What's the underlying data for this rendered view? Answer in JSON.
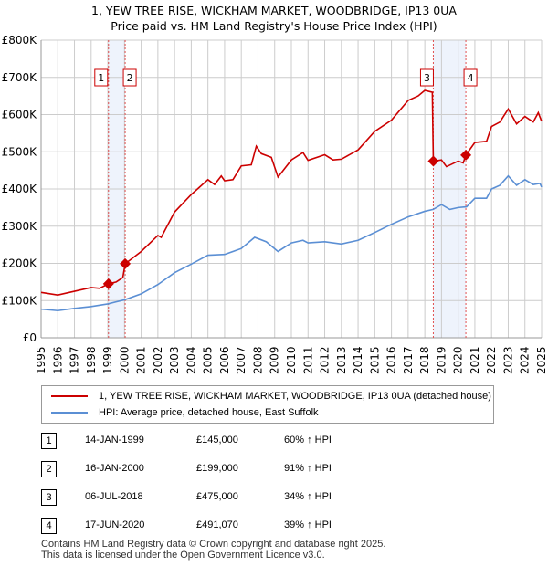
{
  "chart_data": {
    "type": "line",
    "title": "1, YEW TREE RISE, WICKHAM MARKET, WOODBRIDGE, IP13 0UA",
    "subtitle": "Price paid vs. HM Land Registry's House Price Index (HPI)",
    "xlim": [
      1995,
      2025
    ],
    "ylim": [
      0,
      800000
    ],
    "y_ticks": [
      {
        "v": 0,
        "label": "£0"
      },
      {
        "v": 100000,
        "label": "£100K"
      },
      {
        "v": 200000,
        "label": "£200K"
      },
      {
        "v": 300000,
        "label": "£300K"
      },
      {
        "v": 400000,
        "label": "£400K"
      },
      {
        "v": 500000,
        "label": "£500K"
      },
      {
        "v": 600000,
        "label": "£600K"
      },
      {
        "v": 700000,
        "label": "£700K"
      },
      {
        "v": 800000,
        "label": "£800K"
      }
    ],
    "x_ticks": [
      "1995",
      "1996",
      "1997",
      "1998",
      "1999",
      "2000",
      "2001",
      "2002",
      "2003",
      "2004",
      "2005",
      "2006",
      "2007",
      "2008",
      "2009",
      "2010",
      "2011",
      "2012",
      "2013",
      "2014",
      "2015",
      "2016",
      "2017",
      "2018",
      "2019",
      "2020",
      "2021",
      "2022",
      "2023",
      "2024",
      "2025"
    ],
    "grid": true,
    "series": [
      {
        "name": "1, YEW TREE RISE, WICKHAM MARKET, WOODBRIDGE, IP13 0UA (detached house)",
        "color": "#cc0000",
        "x": [
          1995,
          1996,
          1997,
          1998,
          1998.5,
          1999.04,
          1999.5,
          1999.9,
          2000.04,
          2001,
          2002,
          2002.2,
          2003,
          2004,
          2005,
          2005.4,
          2005.8,
          2006,
          2006.5,
          2007,
          2007.6,
          2007.9,
          2008.2,
          2008.8,
          2009.2,
          2010,
          2010.7,
          2011,
          2012,
          2012.5,
          2013,
          2014,
          2015,
          2016,
          2017,
          2017.6,
          2018,
          2018.45,
          2018.51,
          2019,
          2019.3,
          2020,
          2020.3,
          2020.46,
          2021,
          2021.7,
          2022,
          2022.5,
          2023,
          2023.5,
          2024,
          2024.5,
          2024.8,
          2025
        ],
        "y": [
          122000,
          115000,
          125000,
          135000,
          133000,
          145000,
          150000,
          162000,
          199000,
          232000,
          275000,
          270000,
          338000,
          385000,
          425000,
          412000,
          435000,
          422000,
          425000,
          462000,
          465000,
          515000,
          495000,
          485000,
          432000,
          478000,
          498000,
          477000,
          492000,
          478000,
          480000,
          505000,
          555000,
          585000,
          638000,
          650000,
          665000,
          660000,
          475000,
          478000,
          460000,
          475000,
          470000,
          491070,
          525000,
          528000,
          568000,
          580000,
          615000,
          575000,
          595000,
          580000,
          605000,
          582000
        ]
      },
      {
        "name": "HPI: Average price, detached house, East Suffolk",
        "color": "#5b8fd4",
        "x": [
          1995,
          1996,
          1997,
          1998,
          1999,
          2000,
          2001,
          2002,
          2003,
          2004,
          2005,
          2006,
          2007,
          2007.8,
          2008.5,
          2009.2,
          2010,
          2010.7,
          2011,
          2012,
          2013,
          2014,
          2015,
          2016,
          2017,
          2018,
          2018.5,
          2019,
          2019.5,
          2020,
          2020.5,
          2021,
          2021.7,
          2022,
          2022.5,
          2023,
          2023.5,
          2024,
          2024.5,
          2024.9,
          2025
        ],
        "y": [
          77000,
          73000,
          79000,
          84000,
          91000,
          102000,
          118000,
          143000,
          175000,
          198000,
          222000,
          224000,
          240000,
          270000,
          258000,
          232000,
          255000,
          262000,
          255000,
          258000,
          252000,
          262000,
          283000,
          305000,
          325000,
          340000,
          345000,
          358000,
          345000,
          350000,
          352000,
          375000,
          375000,
          400000,
          410000,
          435000,
          410000,
          425000,
          412000,
          415000,
          405000
        ]
      }
    ],
    "sales": [
      {
        "n": "1",
        "date": "14-JAN-1999",
        "x": 1999.04,
        "price": 145000,
        "price_label": "£145,000",
        "hpi": "60% ↑ HPI"
      },
      {
        "n": "2",
        "date": "16-JAN-2000",
        "x": 2000.04,
        "price": 199000,
        "price_label": "£199,000",
        "hpi": "91% ↑ HPI"
      },
      {
        "n": "3",
        "date": "06-JUL-2018",
        "x": 2018.51,
        "price": 475000,
        "price_label": "£475,000",
        "hpi": "34% ↑ HPI"
      },
      {
        "n": "4",
        "date": "17-JUN-2020",
        "x": 2020.46,
        "price": 491070,
        "price_label": "£491,070",
        "hpi": "39% ↑ HPI"
      }
    ],
    "shaded_ranges": [
      [
        1999.04,
        2000.04
      ],
      [
        2018.51,
        2020.46
      ]
    ]
  },
  "footer": {
    "line1": "Contains HM Land Registry data © Crown copyright and database right 2025.",
    "line2": "This data is licensed under the Open Government Licence v3.0."
  }
}
